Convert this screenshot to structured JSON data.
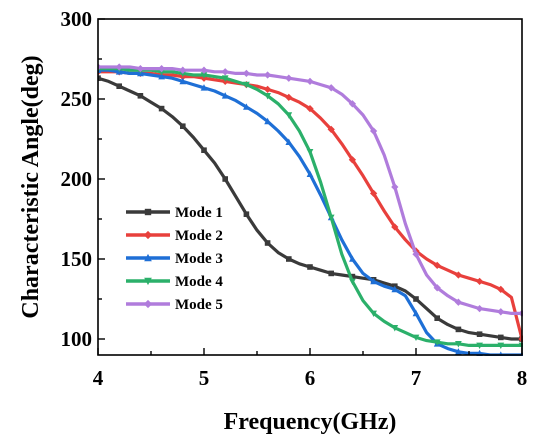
{
  "chart_data": {
    "type": "line",
    "xlabel": "Frequency(GHz)",
    "ylabel": "Characteristic Angle(deg)",
    "xlim": [
      4,
      8
    ],
    "ylim": [
      90,
      300
    ],
    "xticks": [
      4,
      5,
      6,
      7,
      8
    ],
    "yticks": [
      100,
      150,
      200,
      250,
      300
    ],
    "xtick_labels": [
      "4",
      "5",
      "6",
      "7",
      "8"
    ],
    "ytick_labels": [
      "100",
      "150",
      "200",
      "250",
      "300"
    ],
    "legend_position": "lower-left",
    "x": [
      4.0,
      4.1,
      4.2,
      4.3,
      4.4,
      4.5,
      4.6,
      4.7,
      4.8,
      4.9,
      5.0,
      5.1,
      5.2,
      5.3,
      5.4,
      5.5,
      5.6,
      5.7,
      5.8,
      5.9,
      6.0,
      6.1,
      6.2,
      6.3,
      6.4,
      6.5,
      6.6,
      6.7,
      6.8,
      6.9,
      7.0,
      7.1,
      7.2,
      7.3,
      7.4,
      7.5,
      7.6,
      7.7,
      7.8,
      7.9,
      8.0
    ],
    "series": [
      {
        "name": "Mode 1",
        "color": "#3a3a3a",
        "marker": "square",
        "values": [
          263,
          261,
          258,
          255,
          252,
          248,
          244,
          239,
          233,
          226,
          218,
          210,
          200,
          189,
          178,
          168,
          160,
          154,
          150,
          147,
          145,
          143,
          141,
          140,
          139,
          138,
          137,
          135,
          133,
          130,
          125,
          119,
          113,
          109,
          106,
          104,
          103,
          102,
          101,
          100,
          100
        ]
      },
      {
        "name": "Mode 2",
        "color": "#e8403c",
        "marker": "diamond",
        "values": [
          267,
          267,
          267,
          266,
          266,
          266,
          265,
          265,
          264,
          264,
          263,
          262,
          261,
          260,
          259,
          258,
          256,
          254,
          251,
          248,
          244,
          238,
          231,
          222,
          212,
          202,
          191,
          180,
          170,
          162,
          155,
          150,
          146,
          143,
          140,
          138,
          136,
          134,
          131,
          126,
          100
        ]
      },
      {
        "name": "Mode 3",
        "color": "#1e6fd6",
        "marker": "triangle-up",
        "values": [
          268,
          268,
          267,
          266,
          266,
          265,
          264,
          263,
          261,
          259,
          257,
          255,
          252,
          249,
          245,
          241,
          236,
          230,
          223,
          214,
          203,
          190,
          176,
          162,
          150,
          141,
          136,
          133,
          131,
          127,
          116,
          104,
          97,
          94,
          92,
          91,
          91,
          90,
          90,
          90,
          90
        ]
      },
      {
        "name": "Mode 4",
        "color": "#2bb06a",
        "marker": "triangle-down",
        "values": [
          269,
          269,
          269,
          268,
          268,
          268,
          267,
          267,
          266,
          265,
          265,
          264,
          263,
          261,
          259,
          256,
          252,
          247,
          240,
          230,
          217,
          198,
          176,
          153,
          136,
          124,
          116,
          111,
          107,
          104,
          101,
          99,
          98,
          97,
          97,
          96,
          96,
          96,
          96,
          96,
          96
        ]
      },
      {
        "name": "Mode 5",
        "color": "#b07cdc",
        "marker": "diamond",
        "values": [
          270,
          270,
          270,
          270,
          269,
          269,
          269,
          269,
          268,
          268,
          268,
          267,
          267,
          266,
          266,
          265,
          265,
          264,
          263,
          262,
          261,
          259,
          257,
          253,
          247,
          240,
          230,
          215,
          195,
          172,
          153,
          140,
          132,
          127,
          123,
          121,
          119,
          118,
          117,
          116,
          116
        ]
      }
    ]
  }
}
